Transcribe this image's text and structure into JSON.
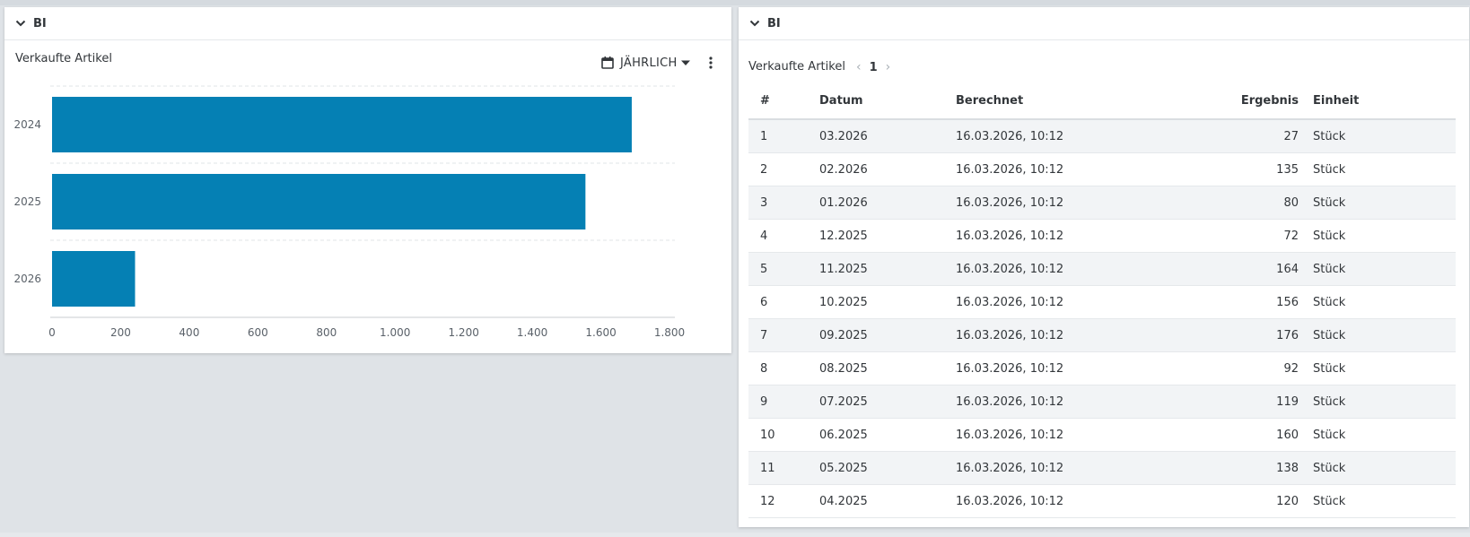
{
  "left_panel": {
    "header_title": "BI",
    "chart_title": "Verkaufte Artikel",
    "period_label": "JÄHRLICH"
  },
  "right_panel": {
    "header_title": "BI",
    "table_title": "Verkaufte Artikel",
    "pager": {
      "prev": "‹",
      "page": "1",
      "next": "›"
    },
    "columns": [
      "#",
      "Datum",
      "Berechnet",
      "Ergebnis",
      "Einheit"
    ],
    "rows": [
      [
        "1",
        "03.2026",
        "16.03.2026, 10:12",
        "27",
        "Stück"
      ],
      [
        "2",
        "02.2026",
        "16.03.2026, 10:12",
        "135",
        "Stück"
      ],
      [
        "3",
        "01.2026",
        "16.03.2026, 10:12",
        "80",
        "Stück"
      ],
      [
        "4",
        "12.2025",
        "16.03.2026, 10:12",
        "72",
        "Stück"
      ],
      [
        "5",
        "11.2025",
        "16.03.2026, 10:12",
        "164",
        "Stück"
      ],
      [
        "6",
        "10.2025",
        "16.03.2026, 10:12",
        "156",
        "Stück"
      ],
      [
        "7",
        "09.2025",
        "16.03.2026, 10:12",
        "176",
        "Stück"
      ],
      [
        "8",
        "08.2025",
        "16.03.2026, 10:12",
        "92",
        "Stück"
      ],
      [
        "9",
        "07.2025",
        "16.03.2026, 10:12",
        "119",
        "Stück"
      ],
      [
        "10",
        "06.2025",
        "16.03.2026, 10:12",
        "160",
        "Stück"
      ],
      [
        "11",
        "05.2025",
        "16.03.2026, 10:12",
        "138",
        "Stück"
      ],
      [
        "12",
        "04.2025",
        "16.03.2026, 10:12",
        "120",
        "Stück"
      ]
    ]
  },
  "colors": {
    "bar": "#0580b4",
    "grid": "#e1e4e7",
    "axis_text": "#5a6169"
  },
  "icons": {
    "collapse": "chevron-down-icon",
    "period": "calendar-icon",
    "dropdown": "caret-down-icon",
    "menu": "more-vertical-icon"
  },
  "chart_data": {
    "type": "bar",
    "orientation": "horizontal",
    "title": "Verkaufte Artikel",
    "categories": [
      "2024",
      "2025",
      "2026"
    ],
    "values": [
      1690,
      1555,
      242
    ],
    "xlim": [
      0,
      1800
    ],
    "xticks": [
      "0",
      "200",
      "400",
      "600",
      "800",
      "1.000",
      "1.200",
      "1.400",
      "1.600",
      "1.800"
    ],
    "grid": true
  }
}
